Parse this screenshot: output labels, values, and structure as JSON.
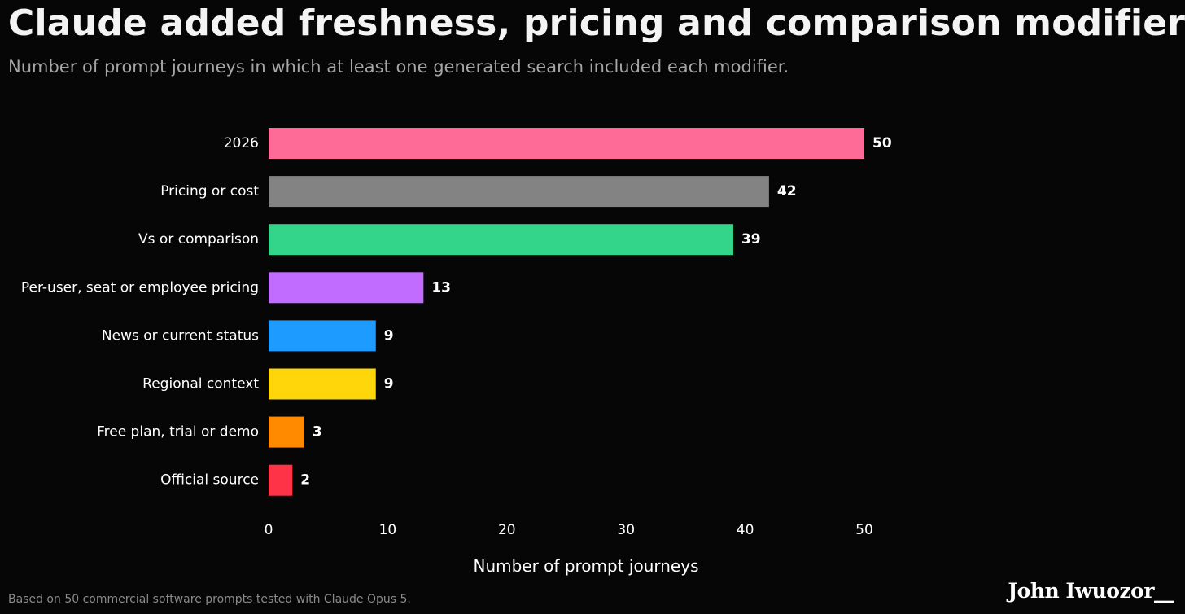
{
  "header": {
    "title": "Claude added freshness, pricing and comparison modifiers",
    "subtitle": "Number of prompt journeys in which at least one generated search included each modifier."
  },
  "chart_data": {
    "type": "bar",
    "orientation": "horizontal",
    "categories": [
      "2026",
      "Pricing or cost",
      "Vs or comparison",
      "Per-user, seat or employee pricing",
      "News or current status",
      "Regional context",
      "Free plan, trial or demo",
      "Official source"
    ],
    "values": [
      50,
      42,
      39,
      13,
      9,
      9,
      3,
      2
    ],
    "colors": [
      "#ff6b97",
      "#838383",
      "#33d58a",
      "#c26cff",
      "#1d9bff",
      "#ffd60a",
      "#ff8a00",
      "#ff3347"
    ],
    "xlabel": "Number of prompt journeys",
    "ylabel": "",
    "xlim": [
      0,
      50
    ],
    "xticks": [
      0,
      10,
      20,
      30,
      40,
      50
    ],
    "grid": false,
    "data_labels": true
  },
  "footer": {
    "note": "Based on 50 commercial software prompts tested with Claude Opus 5.",
    "signature": "John Iwuozor__"
  }
}
